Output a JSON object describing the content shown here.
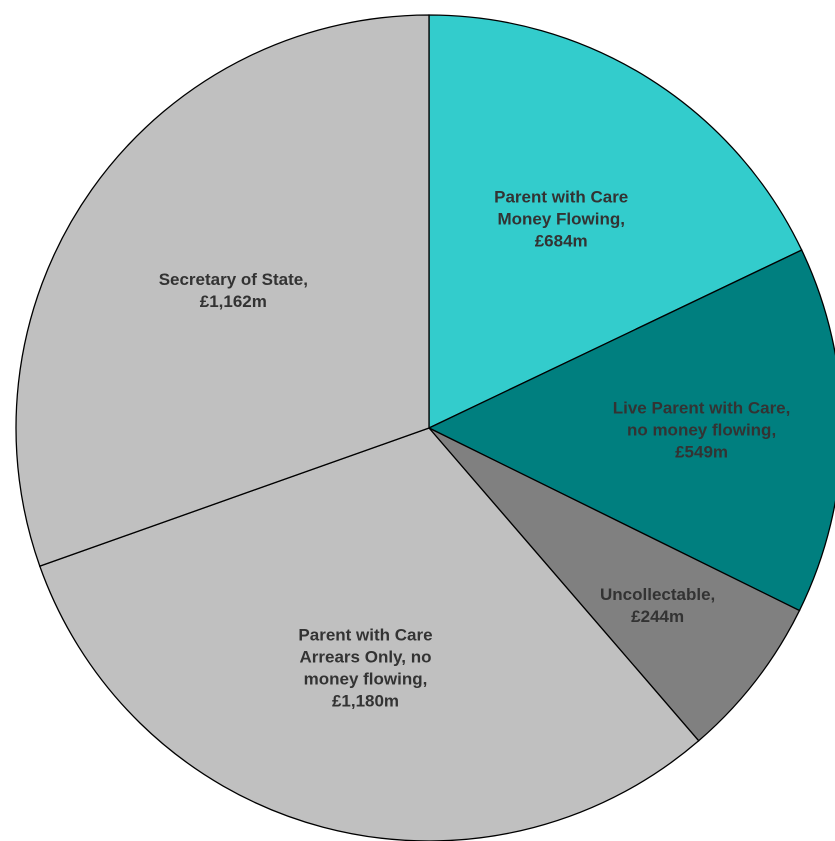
{
  "chart_data": {
    "type": "pie",
    "title": "",
    "unit": "£m",
    "start_angle_deg": 0,
    "direction": "clockwise",
    "slices": [
      {
        "category": "Parent with Care Money Flowing",
        "value": 684,
        "color": "#33CCCC",
        "label_lines": [
          "Parent with Care",
          "Money Flowing,",
          "£684m"
        ]
      },
      {
        "category": "Live Parent with Care, no money flowing",
        "value": 549,
        "color": "#007F7F",
        "label_lines": [
          "Live Parent with Care,",
          "no money flowing,",
          "£549m"
        ]
      },
      {
        "category": "Uncollectable",
        "value": 244,
        "color": "#808080",
        "label_lines": [
          "Uncollectable,",
          "£244m"
        ]
      },
      {
        "category": "Parent with Care Arrears Only, no money flowing",
        "value": 1180,
        "color": "#C0C0C0",
        "label_lines": [
          "Parent with Care",
          "Arrears Only, no",
          "money flowing,",
          "£1,180m"
        ]
      },
      {
        "category": "Secretary of State",
        "value": 1162,
        "color": "#C0C0C0",
        "label_lines": [
          "Secretary of State,",
          "£1,162m"
        ]
      }
    ]
  }
}
